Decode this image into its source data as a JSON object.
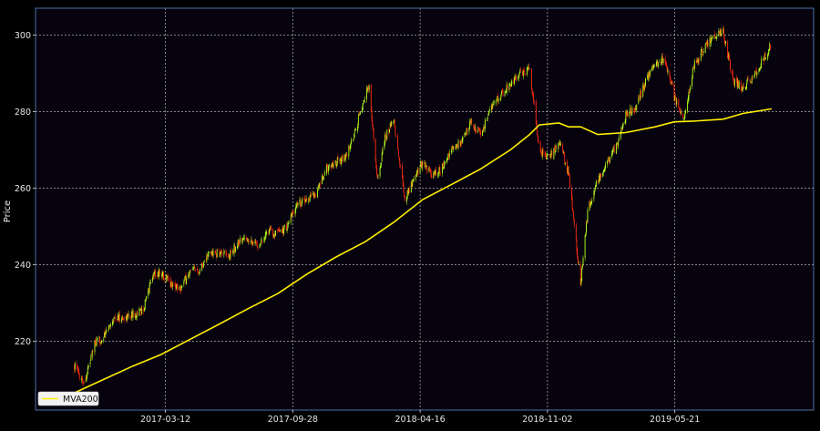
{
  "chart_data": {
    "type": "line",
    "ylabel": "Price",
    "ylim": [
      202,
      307
    ],
    "x_range": [
      "2016-08-20",
      "2019-12-25"
    ],
    "x_ticks": [
      "2017-03-12",
      "2017-09-28",
      "2018-04-16",
      "2018-11-02",
      "2019-05-21"
    ],
    "y_ticks": [
      220,
      240,
      260,
      280,
      300
    ],
    "grid": true,
    "legend": {
      "position": "bottom-left",
      "entries": [
        "MVA200"
      ]
    },
    "colors": {
      "background": "#07030e",
      "frame": "#4a6fa5",
      "up_candle": "#b8ff1c",
      "down_candle": "#ff2a10",
      "moving_average": "#ffee00",
      "grid": "#d0d0d0"
    },
    "series": [
      {
        "name": "Price",
        "x": [
          "2016-10-20",
          "2016-11-05",
          "2016-11-20",
          "2016-12-05",
          "2016-12-20",
          "2017-01-05",
          "2017-01-20",
          "2017-02-05",
          "2017-02-20",
          "2017-03-05",
          "2017-03-20",
          "2017-04-05",
          "2017-04-20",
          "2017-05-05",
          "2017-05-20",
          "2017-06-05",
          "2017-06-20",
          "2017-07-05",
          "2017-07-20",
          "2017-08-05",
          "2017-08-20",
          "2017-09-05",
          "2017-09-20",
          "2017-10-05",
          "2017-10-20",
          "2017-11-05",
          "2017-11-20",
          "2017-12-05",
          "2017-12-20",
          "2018-01-05",
          "2018-01-20",
          "2018-01-26",
          "2018-02-08",
          "2018-02-20",
          "2018-03-05",
          "2018-03-12",
          "2018-03-23",
          "2018-04-05",
          "2018-04-20",
          "2018-05-05",
          "2018-05-20",
          "2018-06-05",
          "2018-06-20",
          "2018-07-05",
          "2018-07-20",
          "2018-08-05",
          "2018-08-20",
          "2018-09-05",
          "2018-09-20",
          "2018-10-05",
          "2018-10-20",
          "2018-11-05",
          "2018-11-20",
          "2018-12-05",
          "2018-12-24",
          "2019-01-05",
          "2019-01-20",
          "2019-02-05",
          "2019-02-20",
          "2019-03-05",
          "2019-03-20",
          "2019-04-05",
          "2019-04-20",
          "2019-05-05",
          "2019-05-20",
          "2019-06-05",
          "2019-06-20",
          "2019-07-05",
          "2019-07-20",
          "2019-08-05",
          "2019-08-20",
          "2019-09-05",
          "2019-09-20",
          "2019-10-05",
          "2019-10-20"
        ],
        "values": [
          213.5,
          209,
          219,
          221,
          226,
          226,
          227,
          228,
          237.5,
          238,
          235,
          234,
          238,
          239,
          243,
          243,
          242,
          246,
          247,
          245,
          249,
          248,
          250,
          256,
          257,
          259,
          265,
          267,
          268,
          275,
          285,
          286,
          262,
          273,
          278,
          270,
          257,
          262,
          267,
          263,
          265,
          270,
          272,
          277,
          274,
          281,
          284,
          287,
          290,
          291,
          270,
          268,
          272,
          264,
          235,
          255,
          262,
          267,
          272,
          279,
          281,
          288,
          292,
          294,
          284,
          278,
          292,
          296,
          300,
          301,
          288,
          286,
          289,
          293,
          298
        ]
      },
      {
        "name": "MVA200",
        "x": [
          "2016-10-20",
          "2016-12-05",
          "2017-01-20",
          "2017-03-05",
          "2017-04-20",
          "2017-06-05",
          "2017-07-20",
          "2017-09-05",
          "2017-10-20",
          "2017-12-05",
          "2018-01-20",
          "2018-03-05",
          "2018-04-20",
          "2018-06-05",
          "2018-07-20",
          "2018-09-05",
          "2018-10-05",
          "2018-10-20",
          "2018-11-20",
          "2018-12-05",
          "2018-12-24",
          "2019-01-20",
          "2019-03-05",
          "2019-04-20",
          "2019-05-20",
          "2019-06-20",
          "2019-08-05",
          "2019-09-05",
          "2019-10-20"
        ],
        "values": [
          206.5,
          210,
          213.5,
          216.5,
          220.5,
          224.5,
          228.5,
          232.5,
          237.5,
          242,
          246,
          251,
          257,
          261,
          265,
          270,
          274,
          276.5,
          277,
          276,
          276,
          274,
          274.5,
          276,
          277.3,
          277.5,
          278,
          279.5,
          280.7
        ]
      }
    ]
  }
}
